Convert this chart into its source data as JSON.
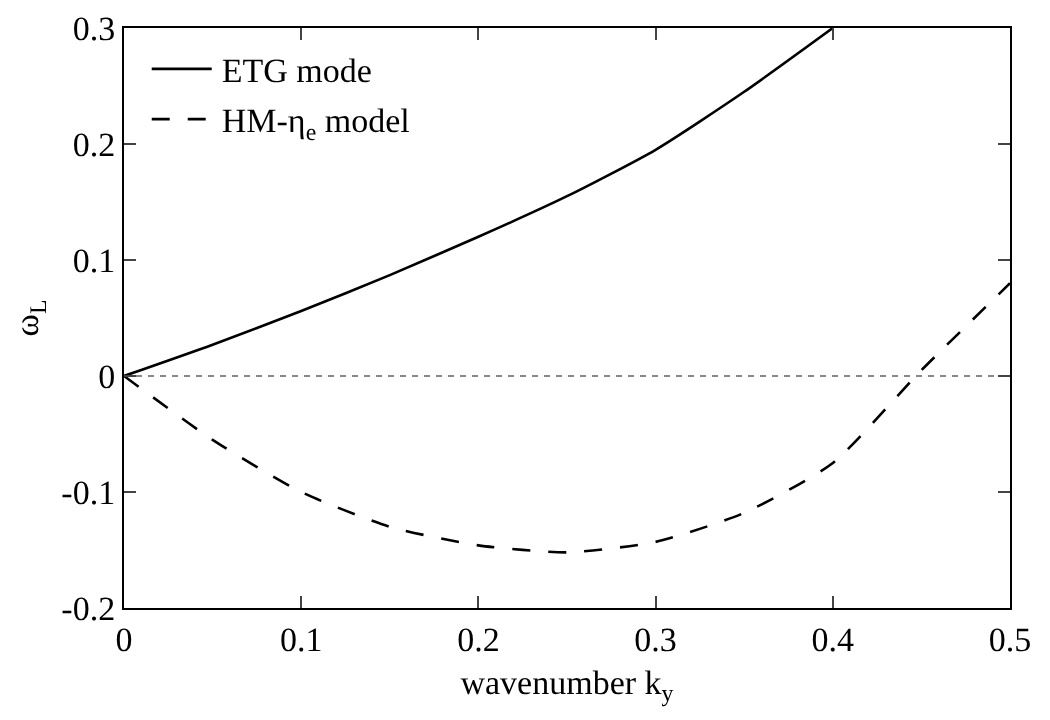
{
  "chart_data": {
    "type": "line",
    "xlabel": "wavenumber k$_{y}$",
    "ylabel": "ω$_{L}$",
    "x": [
      0,
      0.05,
      0.1,
      0.15,
      0.2,
      0.25,
      0.3,
      0.35,
      0.4,
      0.45,
      0.5
    ],
    "series": [
      {
        "name": "ETG mode",
        "color": "#000000",
        "line_style": "solid",
        "values": [
          0,
          0.027,
          0.056,
          0.087,
          0.12,
          0.155,
          0.195,
          0.245,
          0.3,
          null,
          null
        ]
      },
      {
        "name": "HM-η$_{e}$ model",
        "color": "#000000",
        "line_style": "dashed",
        "values": [
          0,
          -0.055,
          -0.1,
          -0.13,
          -0.146,
          -0.152,
          -0.143,
          -0.118,
          -0.075,
          0.005,
          0.08
        ]
      }
    ],
    "xlim": [
      0,
      0.5
    ],
    "xticks": [
      0,
      0.1,
      0.2,
      0.3,
      0.4,
      0.5
    ],
    "ylim": [
      -0.2,
      0.3
    ],
    "yticks": [
      -0.2,
      -0.1,
      0,
      0.1,
      0.2,
      0.3
    ],
    "ref_lines": [
      {
        "axis": "y",
        "value": 0,
        "color": "#888888",
        "line_style": "dotted"
      }
    ],
    "grid": false,
    "legend": "top left",
    "marker": "none"
  }
}
